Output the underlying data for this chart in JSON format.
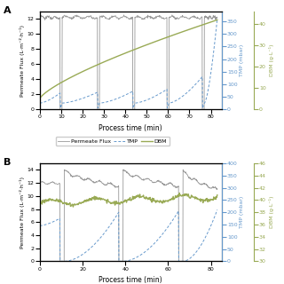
{
  "panel_A": {
    "label": "A",
    "permeate_flux_color": "#999999",
    "tmp_color": "#6699cc",
    "dbm_color": "#99aa55",
    "xlabel": "Process time (min)",
    "ylabel_left": "Permeate Flux (L·m⁻²·h⁻¹)",
    "ylabel_right_tmp": "TMP (mbar)",
    "ylabel_right_dbm": "DBM (g·L⁻¹)",
    "xlim": [
      0,
      85
    ],
    "ylim_flux": [
      0,
      13
    ],
    "ylim_tmp": [
      0,
      390
    ],
    "ylim_dbm": [
      0,
      46
    ],
    "xticks": [
      0,
      10,
      20,
      30,
      40,
      50,
      60,
      70,
      80
    ],
    "yticks_flux": [
      0,
      2,
      4,
      6,
      8,
      10,
      12
    ],
    "yticks_tmp": [
      0,
      50,
      100,
      150,
      200,
      250,
      300,
      350
    ],
    "yticks_dbm": [
      0,
      10,
      20,
      30,
      40
    ],
    "backwash_times_A": [
      9.5,
      27.0,
      43.5,
      59.5,
      76.0
    ],
    "backwash_duration": 1.0
  },
  "panel_B": {
    "label": "B",
    "permeate_flux_color": "#999999",
    "tmp_color": "#6699cc",
    "dbm_color": "#99aa55",
    "xlabel": "Process time (min)",
    "ylabel_left": "Permeate Flux (L·m⁻²·h⁻¹)",
    "ylabel_right_tmp": "TMP (mbar)",
    "ylabel_right_dbm": "DBM (g·L⁻¹)",
    "xlim": [
      0,
      85
    ],
    "ylim_flux": [
      0,
      15
    ],
    "ylim_tmp": [
      0,
      400
    ],
    "ylim_dbm": [
      30,
      46
    ],
    "xticks": [
      0,
      20,
      40,
      60,
      80
    ],
    "yticks_flux": [
      0,
      2,
      4,
      6,
      8,
      10,
      12,
      14
    ],
    "yticks_tmp": [
      0,
      50,
      100,
      150,
      200,
      250,
      300,
      350,
      400
    ],
    "yticks_dbm": [
      30,
      32,
      34,
      36,
      38,
      40,
      42,
      44,
      46
    ],
    "legend_entries": [
      "Permeate Flux",
      "TMP",
      "DBM"
    ],
    "backwash_times_B": [
      9.5,
      37.0,
      65.0
    ],
    "backwash_duration": 2.0
  }
}
